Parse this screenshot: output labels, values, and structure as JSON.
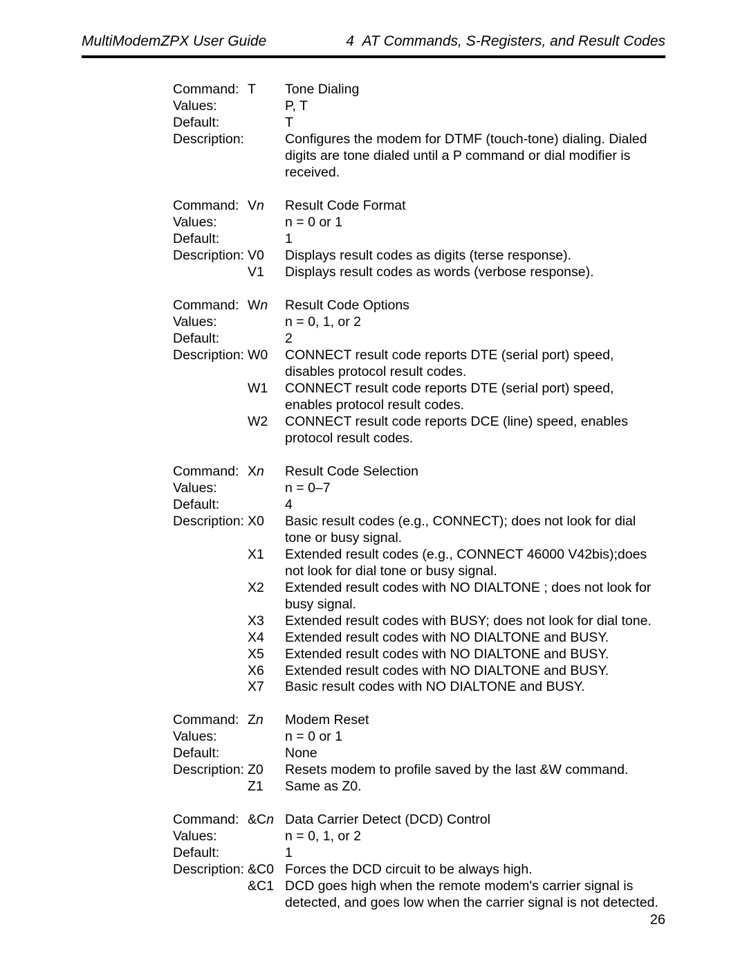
{
  "header": {
    "left": "MultiModemZPX User Guide",
    "right_num": "4",
    "right_title": "AT Commands, S-Registers, and Result Codes"
  },
  "labels": {
    "command": "Command:",
    "values": "Values:",
    "default": "Default:",
    "description": "Description:"
  },
  "page_number": "26",
  "blocks": [
    {
      "command_code": "T",
      "command_title": "Tone Dialing",
      "values_text": "P, T",
      "default_text": "T",
      "desc_rows": [
        {
          "code": "",
          "text": "Configures the modem for DTMF (touch-tone) dialing. Dialed digits are tone dialed until a  P command or dial modifier is received."
        }
      ]
    },
    {
      "command_code": "V",
      "command_param": "n",
      "command_title": "Result Code Format",
      "values_text": "n = 0 or 1",
      "default_text": "1",
      "desc_rows": [
        {
          "code": "V0",
          "text": "Displays result codes as digits (terse response)."
        },
        {
          "code": "V1",
          "text": "Displays result codes as words (verbose response)."
        }
      ]
    },
    {
      "command_code": "W",
      "command_param": "n",
      "command_title": "Result Code Options",
      "values_text": "n = 0, 1, or 2",
      "default_text": "2",
      "desc_rows": [
        {
          "code": "W0",
          "text": "CONNECT result code reports DTE (serial port) speed, disables protocol result codes."
        },
        {
          "code": "W1",
          "text": "CONNECT result code reports DTE (serial port) speed, enables protocol result codes."
        },
        {
          "code": "W2",
          "text": "CONNECT result code reports DCE (line) speed, enables protocol result codes."
        }
      ]
    },
    {
      "command_code": "X",
      "command_param": "n",
      "command_title": "Result Code Selection",
      "values_text": "n = 0–7",
      "default_text": "4",
      "desc_rows": [
        {
          "code": "X0",
          "text": "Basic result codes (e.g., CONNECT); does not look for dial tone or busy signal."
        },
        {
          "code": "X1",
          "text": "Extended result codes (e.g., CONNECT 46000 V42bis);does not look for dial tone or busy signal."
        },
        {
          "code": "X2",
          "text": "Extended result codes with NO DIALTONE ; does not look for busy signal."
        },
        {
          "code": "X3",
          "text": "Extended result codes with BUSY; does not look for dial tone."
        },
        {
          "code": "X4",
          "text": "Extended result codes with NO DIALTONE  and BUSY."
        },
        {
          "code": "X5",
          "text": "Extended result codes with NO DIALTONE  and BUSY."
        },
        {
          "code": "X6",
          "text": "Extended result codes with NO DIALTONE  and BUSY."
        },
        {
          "code": "X7",
          "text": "Basic result codes with NO DIALTONE  and BUSY."
        }
      ]
    },
    {
      "command_code": "Z",
      "command_param": "n",
      "command_title": "Modem Reset",
      "values_text": "n = 0 or 1",
      "default_text": "None",
      "desc_rows": [
        {
          "code": "Z0",
          "text": "Resets modem to profile saved by the last &W  command."
        },
        {
          "code": "Z1",
          "text": "Same as Z0."
        }
      ]
    },
    {
      "command_code": "&C",
      "command_param": "n",
      "command_title": "Data Carrier Detect (DCD) Control",
      "values_text": "n = 0, 1, or 2",
      "default_text": "1",
      "desc_rows": [
        {
          "code": "&C0",
          "text": "Forces the DCD circuit to be always high."
        },
        {
          "code": "&C1",
          "text": "DCD goes high when the remote modem's carrier signal is detected, and goes low when the carrier signal is not detected."
        }
      ]
    }
  ]
}
